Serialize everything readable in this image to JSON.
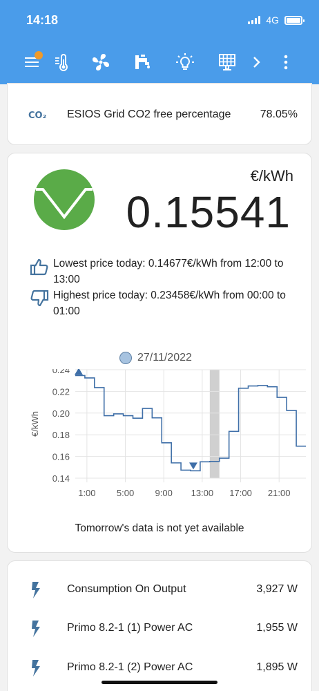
{
  "status_bar": {
    "time": "14:18",
    "network": "4G"
  },
  "toolbar": {
    "icons": [
      "menu-icon",
      "thermometer-icon",
      "fan-icon",
      "water-tap-icon",
      "lightbulb-icon",
      "solar-panel-icon",
      "chevron-right-icon",
      "more-vert-icon"
    ],
    "active_tab": "solar-panel-icon",
    "notification_color": "#ef9a2a"
  },
  "co2": {
    "icon_text": "CO₂",
    "label": "ESIOS Grid CO2 free percentage",
    "value": "78.05%"
  },
  "price": {
    "unit": "€/kWh",
    "value": "0.15541",
    "indicator_color": "#5aab48",
    "lowest": "Lowest price today: 0.14677€/kWh from 12:00 to 13:00",
    "highest": "Highest price today: 0.23458€/kWh from 00:00 to 01:00",
    "tomorrow_note": "Tomorrow's data is not yet available"
  },
  "chart_data": {
    "type": "line",
    "step": true,
    "title": "",
    "legend": [
      "27/11/2022"
    ],
    "ylabel": "€/kWh",
    "ylim": [
      0.14,
      0.24
    ],
    "yticks": [
      "0.24",
      "0.22",
      "0.20",
      "0.18",
      "0.16",
      "0.14"
    ],
    "xticks": [
      "1:00",
      "5:00",
      "9:00",
      "13:00",
      "17:00",
      "21:00"
    ],
    "x": [
      0,
      1,
      2,
      3,
      4,
      5,
      6,
      7,
      8,
      9,
      10,
      11,
      12,
      13,
      14,
      15,
      16,
      17,
      18,
      19,
      20,
      21,
      22,
      23
    ],
    "values": [
      0.2346,
      0.2324,
      0.2235,
      0.1976,
      0.1993,
      0.1976,
      0.1953,
      0.2043,
      0.1956,
      0.1726,
      0.1541,
      0.1474,
      0.1468,
      0.1551,
      0.1554,
      0.1584,
      0.1831,
      0.2229,
      0.225,
      0.2254,
      0.2243,
      0.2145,
      0.2024,
      0.1695
    ],
    "current_hour": 14,
    "max_marker_hour": 0,
    "min_marker_hour": 12,
    "line_color": "#3f6fa8"
  },
  "entities": [
    {
      "icon": "flash-icon",
      "label": "Consumption On Output",
      "value": "3,927 W"
    },
    {
      "icon": "flash-icon",
      "label": "Primo 8.2-1 (1) Power AC",
      "value": "1,955 W"
    },
    {
      "icon": "flash-icon",
      "label": "Primo 8.2-1 (2) Power AC",
      "value": "1,895 W"
    }
  ]
}
